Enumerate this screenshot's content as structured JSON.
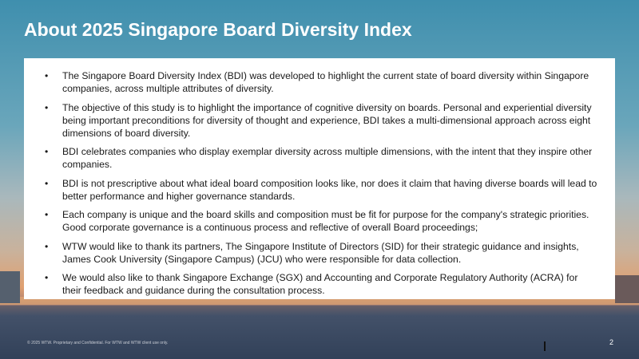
{
  "header": {
    "title": "About 2025 Singapore Board Diversity Index"
  },
  "bullets": [
    "The Singapore Board Diversity Index (BDI) was developed to highlight the current state of board diversity within Singapore companies, across multiple attributes of diversity.",
    "The objective of this study is to highlight the importance of cognitive diversity on boards. Personal and experiential diversity being important preconditions for diversity of thought and experience, BDI takes a multi-dimensional approach across eight dimensions of board diversity.",
    "BDI celebrates companies who display exemplar diversity across multiple dimensions, with the intent that they inspire other companies.",
    "BDI is not prescriptive about what ideal board composition looks like, nor does it claim that having diverse boards will lead to better performance and higher governance standards.",
    "Each company is unique and the board skills and composition must be fit for purpose for the company's strategic priorities. Good corporate governance is a continuous process and reflective of overall Board proceedings;",
    "WTW would like to thank its partners, The Singapore Institute of Directors (SID) for their strategic guidance and insights, James Cook University (Singapore Campus) (JCU) who were responsible for data collection.",
    "We would also like to thank Singapore Exchange (SGX) and Accounting and Corporate Regulatory Authority (ACRA) for their feedback and guidance during the consultation process."
  ],
  "footer": {
    "text": "© 2025 WTW. Proprietary and Confidential. For WTW and WTW client use only.",
    "page_number": 2
  }
}
